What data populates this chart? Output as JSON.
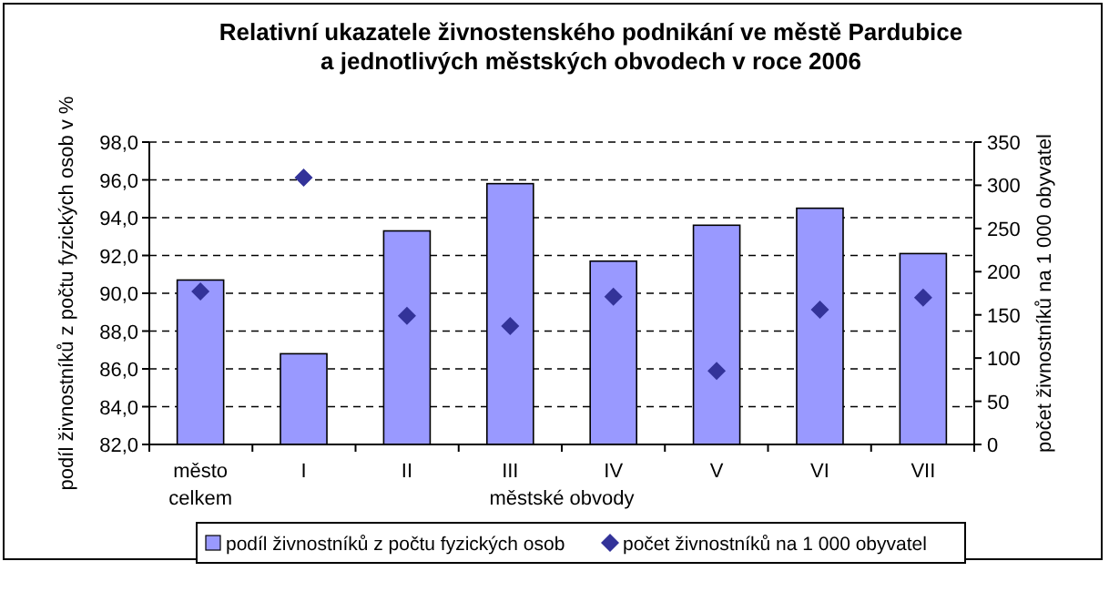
{
  "chart_data": {
    "type": "bar",
    "title": "Relativní ukazatele živnostenského podnikání ve městě Pardubice\na jednotlivých městských obvodech v roce 2006",
    "xlabel": "městské obvody",
    "ylabel": "podíl živnostníků z počtu fyzických osob v %",
    "y2label": "počet živnostníků na 1 000 obyvatel",
    "categories": [
      "město\ncelkem",
      "I",
      "II",
      "III",
      "IV",
      "V",
      "VI",
      "VII"
    ],
    "series": [
      {
        "name": "podíl živnostníků z počtu fyzických osob",
        "color": "#9999ff",
        "values": [
          90.7,
          86.8,
          93.3,
          95.8,
          91.7,
          93.6,
          94.5,
          92.1
        ]
      },
      {
        "name": "počet živnostníků na 1 000 obyvatel",
        "type": "scatter",
        "axis": "y2",
        "marker": "diamond",
        "color": "#333399",
        "values": [
          177,
          309,
          149,
          137,
          171,
          85,
          156,
          170
        ]
      }
    ],
    "ylim": [
      82,
      98
    ],
    "yticks": [
      {
        "value": 82,
        "label": "82,0"
      },
      {
        "value": 84,
        "label": "84,0"
      },
      {
        "value": 86,
        "label": "86,0"
      },
      {
        "value": 88,
        "label": "88,0"
      },
      {
        "value": 90,
        "label": "90,0"
      },
      {
        "value": 92,
        "label": "92,0"
      },
      {
        "value": 94,
        "label": "94,0"
      },
      {
        "value": 96,
        "label": "96,0"
      },
      {
        "value": 98,
        "label": "98,0"
      }
    ],
    "y2lim": [
      0,
      350
    ],
    "y2ticks": [
      0,
      50,
      100,
      150,
      200,
      250,
      300,
      350
    ],
    "grid": "y",
    "legend": "bottom"
  }
}
